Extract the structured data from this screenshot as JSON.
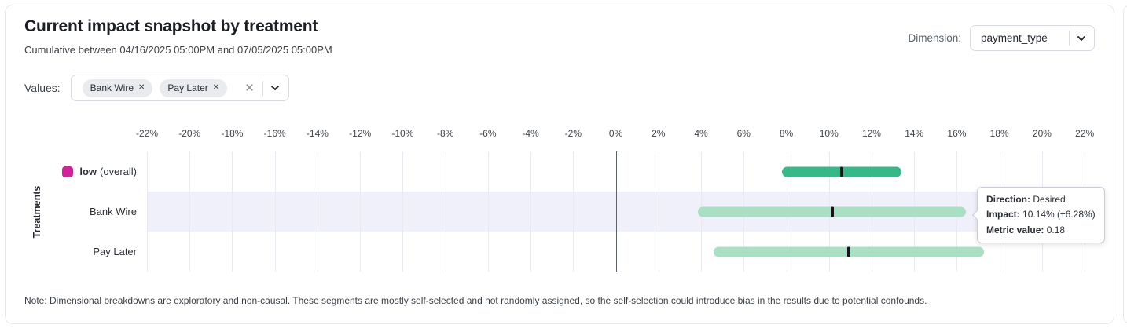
{
  "header": {
    "title": "Current impact snapshot by treatment",
    "subtitle": "Cumulative between 04/16/2025 05:00PM and 07/05/2025 05:00PM",
    "dimension_label": "Dimension:",
    "dimension_value": "payment_type"
  },
  "filters": {
    "values_label": "Values:",
    "chips": [
      {
        "label": "Bank Wire"
      },
      {
        "label": "Pay Later"
      }
    ]
  },
  "chart_data": {
    "type": "bar",
    "subtype": "horizontal-interval",
    "ylabel": "Treatments",
    "x_unit": "%",
    "xlim": [
      -22,
      22.4
    ],
    "x_ticks": [
      -22,
      -20,
      -18,
      -16,
      -14,
      -12,
      -10,
      -8,
      -6,
      -4,
      -2,
      0,
      2,
      4,
      6,
      8,
      10,
      12,
      14,
      16,
      18,
      20,
      22
    ],
    "zero_line": 0,
    "grid": true,
    "rows": [
      {
        "name": "low",
        "name_bold": true,
        "suffix": "(overall)",
        "swatch_color": "#d2239b",
        "impact": 10.6,
        "margin": 2.8,
        "bar_color": "#35b989",
        "highlighted": false
      },
      {
        "name": "Bank Wire",
        "impact": 10.14,
        "margin": 6.28,
        "bar_color": "#a9e0c4",
        "highlighted": true
      },
      {
        "name": "Pay Later",
        "impact": 10.93,
        "margin": 6.33,
        "bar_color": "#a9e0c4",
        "highlighted": false
      }
    ]
  },
  "tooltip": {
    "rows": [
      {
        "label": "Direction:",
        "value": "Desired"
      },
      {
        "label": "Impact:",
        "value": "10.14% (±6.28%)"
      },
      {
        "label": "Metric value:",
        "value": "0.18"
      }
    ]
  },
  "note": "Note: Dimensional breakdowns are exploratory and non-causal. These segments are mostly self-selected and not randomly assigned, so the self-selection could introduce bias in the results due to potential confounds.",
  "colors": {
    "accent_magenta": "#d2239b",
    "bar_strong": "#35b989",
    "bar_light": "#a9e0c4",
    "row_highlight": "#f0f0fa",
    "marker": "#101418"
  }
}
